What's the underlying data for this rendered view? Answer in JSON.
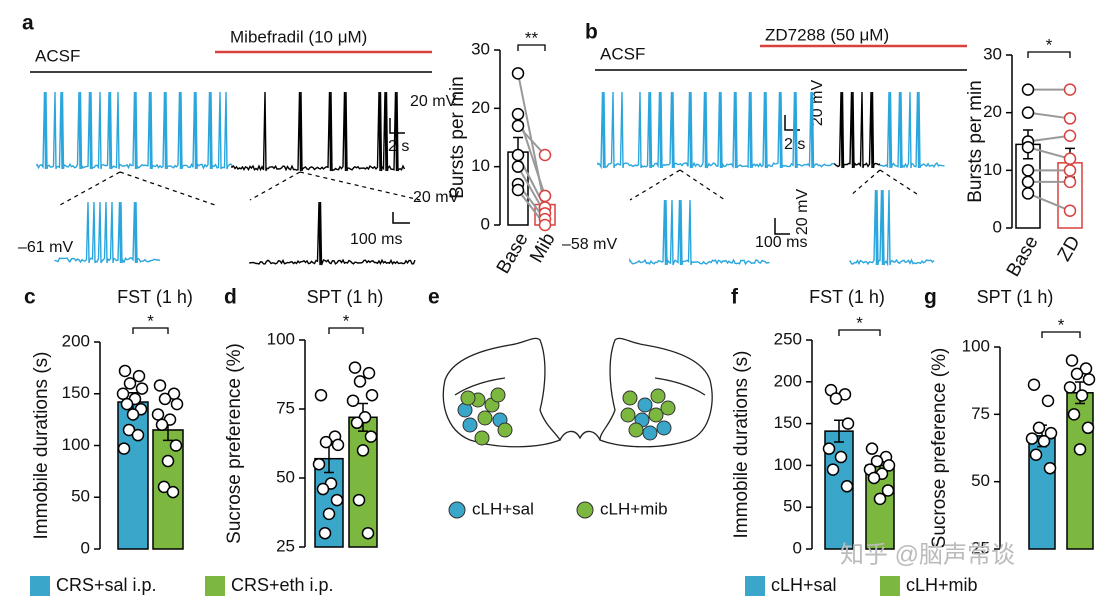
{
  "chart_data": [
    {
      "type": "bar",
      "ylabel": "Bursts per min",
      "categories": [
        "Base",
        "Mib"
      ],
      "category_label_style": "rotated",
      "values": [
        12.5,
        3.5
      ],
      "errors": [
        2.5,
        1.5
      ],
      "colors": [
        "#ffffff",
        "#ffffff"
      ],
      "edgecolors": [
        "#000000",
        "#d9413f"
      ],
      "paired": true,
      "points": [
        [
          26,
          19,
          17,
          12,
          10,
          7,
          6
        ],
        [
          3,
          5,
          12,
          3,
          2,
          1,
          0
        ]
      ],
      "significance": "**",
      "ylim": [
        0,
        30
      ],
      "yticks": [
        0,
        10,
        20,
        30
      ]
    },
    {
      "type": "bar",
      "ylabel": "Bursts per min",
      "categories": [
        "Base",
        "ZD"
      ],
      "category_label_style": "rotated",
      "values": [
        14.5,
        11.3
      ],
      "errors": [
        2.5,
        2.5
      ],
      "colors": [
        "#ffffff",
        "#ffffff"
      ],
      "edgecolors": [
        "#000000",
        "#d9413f"
      ],
      "paired": true,
      "points": [
        [
          24,
          20,
          15,
          14,
          10,
          8,
          6
        ],
        [
          24,
          19,
          16,
          12,
          10,
          8,
          3
        ]
      ],
      "significance": "*",
      "ylim": [
        0,
        30
      ],
      "yticks": [
        0,
        10,
        20,
        30
      ]
    },
    {
      "type": "bar",
      "panel": "c",
      "title": "FST (1 h)",
      "ylabel": "Immobile durations (s)",
      "categories": [
        "CRS+sal i.p.",
        "CRS+eth i.p."
      ],
      "category_label_style": "legend",
      "values": [
        142,
        115
      ],
      "errors": [
        9,
        10
      ],
      "colors": [
        "#3aa6c9",
        "#7cb83f"
      ],
      "edgecolors": [
        "#000000",
        "#000000"
      ],
      "paired": false,
      "points": [
        [
          172,
          167,
          160,
          155,
          150,
          145,
          140,
          135,
          130,
          115,
          110,
          97
        ],
        [
          158,
          150,
          145,
          140,
          130,
          125,
          120,
          100,
          85,
          60,
          55
        ]
      ],
      "significance": "*",
      "ylim": [
        0,
        200
      ],
      "yticks": [
        0,
        50,
        100,
        150,
        200
      ]
    },
    {
      "type": "bar",
      "panel": "d",
      "title": "SPT (1 h)",
      "ylabel": "Sucrose preference (%)",
      "categories": [
        null,
        null
      ],
      "category_label_style": "legend",
      "values": [
        57,
        72
      ],
      "errors": [
        5,
        5
      ],
      "colors": [
        "#3aa6c9",
        "#7cb83f"
      ],
      "edgecolors": [
        "#000000",
        "#000000"
      ],
      "paired": false,
      "points": [
        [
          80,
          65,
          63,
          62,
          55,
          48,
          46,
          42,
          37,
          30
        ],
        [
          90,
          88,
          85,
          80,
          78,
          72,
          70,
          65,
          60,
          42,
          30
        ]
      ],
      "significance": "*",
      "ylim": [
        25,
        100
      ],
      "yticks": [
        25,
        50,
        75,
        100
      ]
    },
    {
      "type": "bar",
      "panel": "f",
      "title": "FST (1 h)",
      "ylabel": "Immobile durations (s)",
      "categories": [
        "cLH+sal",
        "cLH+mib"
      ],
      "category_label_style": "legend",
      "values": [
        141,
        100
      ],
      "errors": [
        13,
        9
      ],
      "colors": [
        "#3aa6c9",
        "#7cb83f"
      ],
      "edgecolors": [
        "#000000",
        "#000000"
      ],
      "paired": false,
      "points": [
        [
          190,
          185,
          180,
          150,
          120,
          110,
          95,
          75
        ],
        [
          120,
          110,
          105,
          100,
          95,
          90,
          85,
          70,
          60
        ]
      ],
      "significance": "*",
      "ylim": [
        0,
        250
      ],
      "yticks": [
        0,
        50,
        100,
        150,
        200,
        250
      ]
    },
    {
      "type": "bar",
      "panel": "g",
      "title": "SPT (1 h)",
      "ylabel": "Sucrose preference (%)",
      "categories": [
        null,
        null
      ],
      "category_label_style": "legend",
      "values": [
        67,
        83
      ],
      "errors": [
        4,
        4
      ],
      "colors": [
        "#3aa6c9",
        "#7cb83f"
      ],
      "edgecolors": [
        "#000000",
        "#000000"
      ],
      "paired": false,
      "points": [
        [
          86,
          80,
          70,
          68,
          66,
          65,
          60,
          55
        ],
        [
          95,
          92,
          90,
          88,
          85,
          82,
          75,
          70,
          62
        ]
      ],
      "significance": "*",
      "ylim": [
        25,
        100
      ],
      "yticks": [
        25,
        50,
        75,
        100
      ]
    }
  ],
  "traces": [
    {
      "panel": "a",
      "baseline": "ACSF",
      "drug": "Mibefradil (10 μM)",
      "scale_main": [
        "20 mV",
        "2 s"
      ],
      "scale_inset": [
        "20 mV",
        "100 ms"
      ],
      "rest": "–61 mV"
    },
    {
      "panel": "b",
      "baseline": "ACSF",
      "drug": "ZD7288 (50 μM)",
      "scale_main": [
        "20 mV",
        "2 s"
      ],
      "scale_inset": [
        "20 mV",
        "100 ms"
      ],
      "rest": "–58 mV"
    }
  ],
  "diagram": {
    "panel": "e",
    "legend": [
      "cLH+sal",
      "cLH+mib"
    ]
  },
  "watermark": "知乎 @脑声常谈"
}
